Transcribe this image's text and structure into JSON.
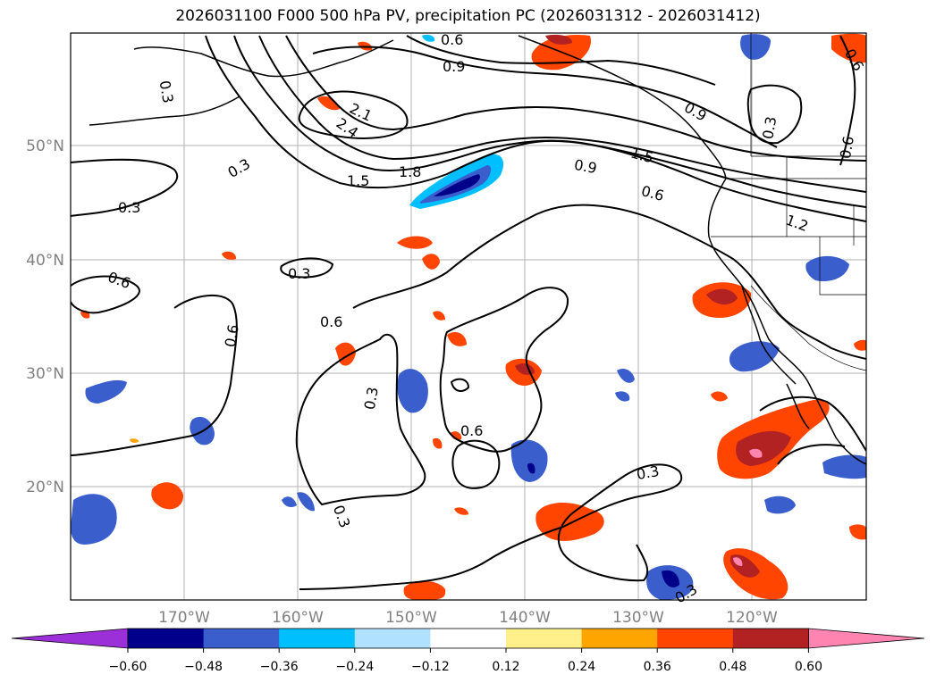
{
  "title": "2026031100 F000 500 hPa PV, precipitation PC (2026031312 - 2026031412)",
  "map": {
    "lat_ticks": [
      {
        "value": 50,
        "label": "50°N"
      },
      {
        "value": 40,
        "label": "40°N"
      },
      {
        "value": 30,
        "label": "30°N"
      },
      {
        "value": 20,
        "label": "20°N"
      }
    ],
    "lon_ticks": [
      {
        "value": -170,
        "label": "170°W"
      },
      {
        "value": -160,
        "label": "160°W"
      },
      {
        "value": -150,
        "label": "150°W"
      },
      {
        "value": -140,
        "label": "140°W"
      },
      {
        "value": -130,
        "label": "130°W"
      },
      {
        "value": -120,
        "label": "120°W"
      }
    ],
    "contour_labels": [
      "0.3",
      "0.6",
      "0.9",
      "1.2",
      "1.5",
      "1.8",
      "2.1",
      "2.4"
    ]
  },
  "colorbar": {
    "ticks": [
      "−0.60",
      "−0.48",
      "−0.36",
      "−0.24",
      "−0.12",
      "0.12",
      "0.24",
      "0.36",
      "0.48",
      "0.60"
    ],
    "colors": [
      "#9b30d9",
      "#00008b",
      "#3a5fcd",
      "#00bfff",
      "#b0e2ff",
      "#ffffff",
      "#fff08c",
      "#ffa500",
      "#ff4500",
      "#b22222",
      "#ff85b0"
    ]
  }
}
